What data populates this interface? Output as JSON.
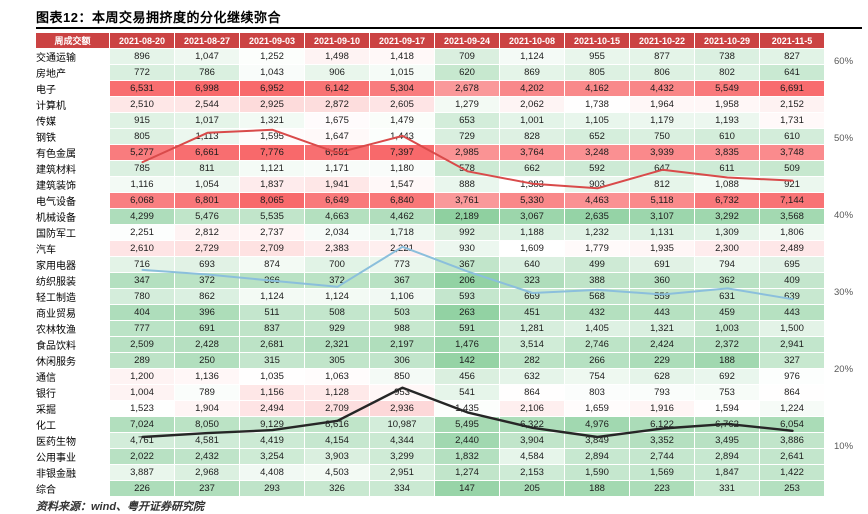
{
  "header": {
    "title": "图表12：本周交易拥挤度的分化继续弥合"
  },
  "footer": {
    "source": "资料来源：wind、粤开证券研究院"
  },
  "colors": {
    "header_bg": "#cb4343",
    "heat_green": "#63be7b",
    "heat_white": "#ffffff",
    "heat_red": "#f8696b",
    "line_red": "#d94a4a",
    "line_blue": "#8bbfdc",
    "line_black": "#262626",
    "title_rule": "#000000"
  },
  "chart_data": {
    "type": "table",
    "title": "本周交易拥挤度的分化继续弥合",
    "corner_label": "周成交额",
    "columns": [
      "2021-08-20",
      "2021-08-27",
      "2021-09-03",
      "2021-09-10",
      "2021-09-17",
      "2021-09-24",
      "2021-10-08",
      "2021-10-15",
      "2021-10-22",
      "2021-10-29",
      "2021-11-5"
    ],
    "rows": [
      {
        "name": "交通运输",
        "tone": 0.46,
        "values": [
          896,
          1047,
          1252,
          1498,
          1418,
          709,
          1124,
          955,
          877,
          738,
          827
        ]
      },
      {
        "name": "房地产",
        "tone": 0.4,
        "values": [
          772,
          786,
          1043,
          906,
          1015,
          620,
          869,
          805,
          806,
          802,
          641
        ]
      },
      {
        "name": "电子",
        "tone": 0.92,
        "values": [
          6531,
          6998,
          6952,
          6142,
          5304,
          2678,
          4202,
          4162,
          4432,
          5549,
          6691
        ]
      },
      {
        "name": "计算机",
        "tone": 0.54,
        "values": [
          2510,
          2544,
          2925,
          2872,
          2605,
          1279,
          2062,
          1738,
          1964,
          1958,
          2152
        ]
      },
      {
        "name": "传媒",
        "tone": 0.44,
        "values": [
          915,
          1017,
          1321,
          1675,
          1479,
          653,
          1001,
          1105,
          1179,
          1193,
          1731
        ]
      },
      {
        "name": "钢铁",
        "tone": 0.44,
        "values": [
          805,
          1113,
          1595,
          1647,
          1443,
          729,
          828,
          652,
          750,
          610,
          610
        ]
      },
      {
        "name": "有色金属",
        "tone": 0.94,
        "values": [
          5277,
          6661,
          7776,
          6551,
          7397,
          2985,
          3764,
          3248,
          3939,
          3835,
          3748
        ]
      },
      {
        "name": "建筑材料",
        "tone": 0.4,
        "values": [
          785,
          811,
          1121,
          1171,
          1180,
          578,
          662,
          592,
          647,
          611,
          509
        ]
      },
      {
        "name": "建筑装饰",
        "tone": 0.5,
        "values": [
          1116,
          1054,
          1837,
          1941,
          1547,
          888,
          1383,
          903,
          812,
          1088,
          921
        ]
      },
      {
        "name": "电气设备",
        "tone": 0.92,
        "values": [
          6068,
          6801,
          8065,
          6649,
          6840,
          3761,
          5330,
          4463,
          5118,
          6732,
          7144
        ]
      },
      {
        "name": "机械设备",
        "tone": 0.22,
        "values": [
          4299,
          5476,
          5535,
          4663,
          4462,
          2189,
          3067,
          2635,
          3107,
          3292,
          3568
        ]
      },
      {
        "name": "国防军工",
        "tone": 0.46,
        "values": [
          2251,
          2812,
          2737,
          2034,
          1718,
          992,
          1188,
          1232,
          1131,
          1309,
          1806
        ]
      },
      {
        "name": "汽车",
        "tone": 0.52,
        "values": [
          2610,
          2729,
          2709,
          2383,
          2221,
          930,
          1609,
          1779,
          1935,
          2300,
          2489
        ]
      },
      {
        "name": "家用电器",
        "tone": 0.38,
        "values": [
          716,
          693,
          874,
          700,
          773,
          367,
          640,
          499,
          691,
          794,
          695
        ]
      },
      {
        "name": "纺织服装",
        "tone": 0.23,
        "values": [
          347,
          372,
          366,
          372,
          367,
          206,
          323,
          388,
          360,
          362,
          409
        ]
      },
      {
        "name": "轻工制造",
        "tone": 0.38,
        "values": [
          780,
          862,
          1124,
          1124,
          1106,
          593,
          669,
          568,
          559,
          631,
          639
        ]
      },
      {
        "name": "商业贸易",
        "tone": 0.23,
        "values": [
          404,
          396,
          511,
          508,
          503,
          263,
          451,
          432,
          443,
          459,
          443
        ]
      },
      {
        "name": "农林牧渔",
        "tone": 0.33,
        "values": [
          777,
          691,
          837,
          929,
          988,
          591,
          1281,
          1405,
          1321,
          1003,
          1500
        ]
      },
      {
        "name": "食品饮料",
        "tone": 0.27,
        "values": [
          2509,
          2428,
          2681,
          2321,
          2197,
          1476,
          3514,
          2746,
          2424,
          2372,
          2941
        ]
      },
      {
        "name": "休闲服务",
        "tone": 0.24,
        "values": [
          289,
          250,
          315,
          305,
          306,
          142,
          282,
          266,
          229,
          188,
          327
        ]
      },
      {
        "name": "通信",
        "tone": 0.46,
        "values": [
          1200,
          1136,
          1035,
          1063,
          850,
          456,
          632,
          754,
          628,
          692,
          976
        ]
      },
      {
        "name": "银行",
        "tone": 0.5,
        "values": [
          1004,
          789,
          1156,
          1128,
          953,
          541,
          864,
          803,
          793,
          753,
          864
        ]
      },
      {
        "name": "采掘",
        "tone": 0.55,
        "values": [
          1523,
          1904,
          2494,
          2709,
          2936,
          1435,
          2106,
          1659,
          1916,
          1594,
          1224
        ]
      },
      {
        "name": "化工",
        "tone": 0.28,
        "values": [
          7024,
          8050,
          9129,
          8616,
          10987,
          5495,
          6322,
          4976,
          6122,
          6762,
          6054
        ]
      },
      {
        "name": "医药生物",
        "tone": 0.28,
        "values": [
          4761,
          4581,
          4419,
          4154,
          4344,
          2440,
          3904,
          3849,
          3352,
          3495,
          3886
        ]
      },
      {
        "name": "公用事业",
        "tone": 0.34,
        "values": [
          2022,
          2432,
          3254,
          3903,
          3299,
          1832,
          4584,
          2894,
          2744,
          2894,
          2641
        ]
      },
      {
        "name": "非银金融",
        "tone": 0.38,
        "values": [
          3887,
          2968,
          4408,
          4503,
          2951,
          1274,
          2153,
          1590,
          1569,
          1847,
          1422
        ]
      },
      {
        "name": "综合",
        "tone": 0.25,
        "values": [
          226,
          237,
          293,
          326,
          334,
          147,
          205,
          188,
          223,
          331,
          253
        ]
      }
    ],
    "right_axis": {
      "unit": "%",
      "ticks": [
        "60%",
        "50%",
        "40%",
        "30%",
        "20%",
        "10%"
      ]
    },
    "lines": [
      {
        "name": "series-red",
        "color_key": "line_red",
        "width": 2,
        "values": [
          47.0,
          50.8,
          51.2,
          48.2,
          50.4,
          45.8,
          44.2,
          43.6,
          46.0,
          45.0,
          44.6
        ]
      },
      {
        "name": "series-blue",
        "color_key": "line_blue",
        "width": 2,
        "values": [
          33.0,
          32.4,
          31.6,
          30.8,
          36.0,
          32.8,
          30.0,
          30.4,
          29.8,
          30.6,
          29.2
        ]
      },
      {
        "name": "series-black",
        "color_key": "line_black",
        "width": 2.4,
        "values": [
          11.3,
          11.8,
          12.2,
          13.4,
          17.7,
          14.5,
          12.5,
          11.3,
          12.4,
          13.0,
          12.1
        ]
      }
    ]
  }
}
